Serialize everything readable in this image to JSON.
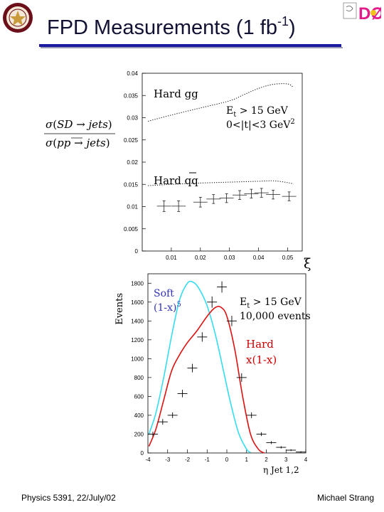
{
  "slide": {
    "title_main": "FPD Measurements (1 fb",
    "title_sup": "-1",
    "title_end": ")",
    "logo_text": "DØ",
    "footer_left": "Physics 5391, 22/July/02",
    "footer_right": "Michael Strang"
  },
  "colors": {
    "title_rule": "#1a1aa0",
    "soft": "#33ddee",
    "hard": "#dd1111",
    "soft_label": "#3333bb",
    "hard_label": "#cc0000"
  },
  "chart_data": [
    {
      "type": "line",
      "ylabel_parts": {
        "num_a": "SD",
        "num_b": "jets",
        "den_a": "pp",
        "den_b": "jets"
      },
      "xlabel": "ξ",
      "xlim": [
        0,
        0.055
      ],
      "ylim": [
        0,
        0.04
      ],
      "x_ticks": [
        0.01,
        0.02,
        0.03,
        0.04,
        0.05
      ],
      "y_ticks": [
        0,
        0.005,
        0.01,
        0.015,
        0.02,
        0.025,
        0.03,
        0.035,
        0.04
      ],
      "annotation_cut": {
        "et_base": "E",
        "et_sub": "t",
        "et_rest": " > 15 GeV",
        "t_text": "0<|t|<3 GeV",
        "t_sup": "2"
      },
      "series": [
        {
          "name": "Hard gg",
          "style": "dotted",
          "x": [
            0.002,
            0.01,
            0.02,
            0.03,
            0.035,
            0.04,
            0.045,
            0.05,
            0.052
          ],
          "y": [
            0.0292,
            0.0306,
            0.0322,
            0.0338,
            0.0352,
            0.0366,
            0.0375,
            0.0376,
            0.0368
          ]
        },
        {
          "name": "Hard qq",
          "style": "dotted",
          "x": [
            0.002,
            0.01,
            0.02,
            0.03,
            0.04,
            0.045,
            0.05,
            0.052
          ],
          "y": [
            0.0147,
            0.015,
            0.0153,
            0.0155,
            0.0157,
            0.0158,
            0.0154,
            0.0151
          ]
        },
        {
          "name": "data",
          "style": "errorbar",
          "x": [
            0.0075,
            0.0125,
            0.02,
            0.0245,
            0.029,
            0.0335,
            0.0375,
            0.041,
            0.045,
            0.0505
          ],
          "y": [
            0.0101,
            0.0101,
            0.011,
            0.0117,
            0.0119,
            0.0126,
            0.0129,
            0.0131,
            0.0127,
            0.0123
          ],
          "yerr": [
            0.0012,
            0.0012,
            0.0011,
            0.001,
            0.001,
            0.001,
            0.001,
            0.001,
            0.001,
            0.001
          ]
        }
      ]
    },
    {
      "type": "line",
      "ylabel": "Events",
      "xlabel": "η Jet 1,2",
      "xlim": [
        -4,
        4
      ],
      "ylim": [
        0,
        1900
      ],
      "x_ticks": [
        -4,
        -3,
        -2,
        -1,
        0,
        1,
        2,
        3,
        4
      ],
      "y_ticks": [
        0,
        200,
        400,
        600,
        800,
        1000,
        1200,
        1400,
        1600,
        1800
      ],
      "annotation_cut": {
        "et_base": "E",
        "et_sub": "t",
        "et_rest": " > 15 GeV",
        "events": "10,000 events"
      },
      "series_labels": {
        "soft_1": "Soft",
        "soft_2": "(1-x)",
        "soft_sup": "5",
        "hard_1": "Hard",
        "hard_2": "x(1-x)"
      },
      "series": [
        {
          "name": "Soft",
          "color": "#33ddee",
          "x": [
            -3.95,
            -3.6,
            -3.2,
            -2.8,
            -2.4,
            -2.0,
            -1.7,
            -1.4,
            -1.0,
            -0.6,
            -0.2,
            0.2,
            0.6,
            1.0,
            1.2
          ],
          "y": [
            200,
            420,
            800,
            1240,
            1620,
            1800,
            1810,
            1740,
            1560,
            1270,
            900,
            520,
            210,
            40,
            5
          ]
        },
        {
          "name": "Hard",
          "color": "#dd1111",
          "x": [
            -3.95,
            -3.6,
            -3.2,
            -2.8,
            -2.4,
            -2.0,
            -1.5,
            -1.0,
            -0.6,
            -0.3,
            0.0,
            0.4,
            0.8,
            1.2,
            1.6,
            1.9
          ],
          "y": [
            70,
            250,
            560,
            870,
            1040,
            1170,
            1300,
            1450,
            1540,
            1545,
            1450,
            1100,
            600,
            200,
            40,
            0
          ]
        },
        {
          "name": "data",
          "style": "cross",
          "x": [
            -3.75,
            -3.25,
            -2.75,
            -2.25,
            -1.75,
            -1.25,
            -0.75,
            -0.25,
            0.25,
            0.75,
            1.25,
            1.75,
            2.25,
            2.75,
            3.25,
            3.75
          ],
          "y": [
            200,
            330,
            400,
            630,
            900,
            1230,
            1600,
            1760,
            1400,
            800,
            400,
            200,
            110,
            60,
            30,
            10
          ],
          "yerr": [
            25,
            30,
            30,
            40,
            45,
            50,
            60,
            60,
            55,
            45,
            30,
            20,
            15,
            12,
            10,
            8
          ]
        }
      ]
    }
  ]
}
